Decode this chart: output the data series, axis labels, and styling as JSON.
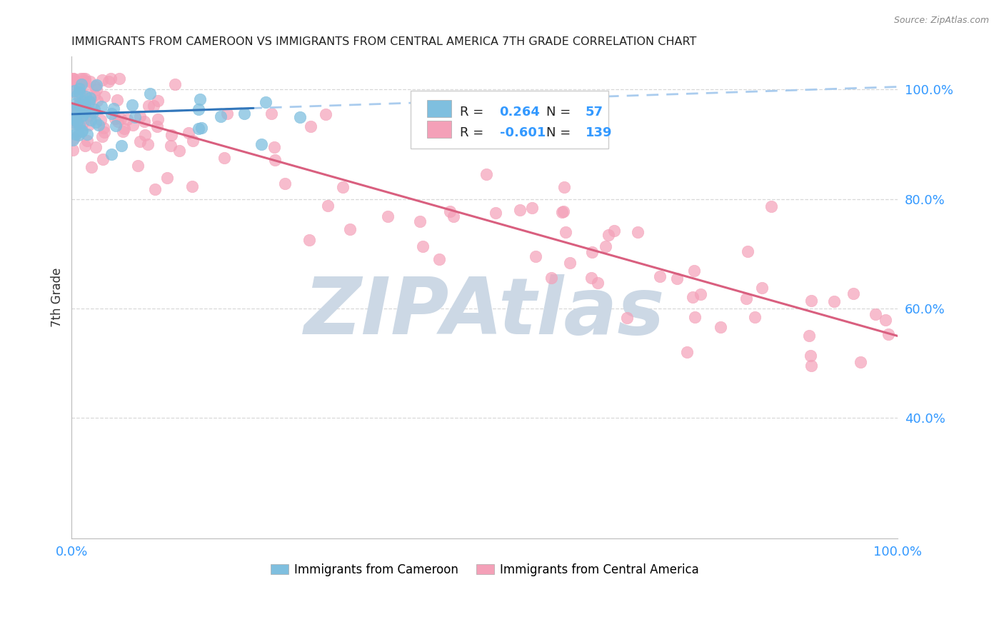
{
  "title": "IMMIGRANTS FROM CAMEROON VS IMMIGRANTS FROM CENTRAL AMERICA 7TH GRADE CORRELATION CHART",
  "source": "Source: ZipAtlas.com",
  "ylabel": "7th Grade",
  "legend_blue_r_val": "0.264",
  "legend_blue_n_val": "57",
  "legend_pink_r_val": "-0.601",
  "legend_pink_n_val": "139",
  "legend_label_blue": "Immigrants from Cameroon",
  "legend_label_pink": "Immigrants from Central America",
  "watermark": "ZIPAtlas",
  "xlim": [
    0,
    100
  ],
  "ylim": [
    18,
    106
  ],
  "yticks": [
    40,
    60,
    80,
    100
  ],
  "ytick_labels": [
    "40.0%",
    "60.0%",
    "80.0%",
    "100.0%"
  ],
  "bg_color": "#ffffff",
  "blue_dot_color": "#7fbfdf",
  "pink_dot_color": "#f4a0b8",
  "blue_trend_color": "#3377bb",
  "blue_trend_dash_color": "#aaccee",
  "pink_trend_color": "#d95f7f",
  "grid_color": "#d8d8d8",
  "title_color": "#222222",
  "source_color": "#888888",
  "watermark_color": "#ccd8e5",
  "axis_tick_color": "#3399ff",
  "ylabel_color": "#333333",
  "legend_text_color": "#222222",
  "legend_val_color": "#3399ff",
  "legend_border_color": "#cccccc",
  "blue_trend_y0": 95.5,
  "blue_trend_y1": 100.5,
  "pink_trend_y0": 97.5,
  "pink_trend_y1": 55.0
}
